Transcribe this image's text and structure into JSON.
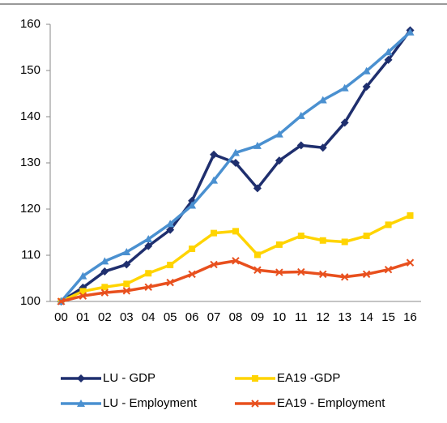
{
  "chart_data": {
    "type": "line",
    "categories": [
      "00",
      "01",
      "02",
      "03",
      "04",
      "05",
      "06",
      "07",
      "08",
      "09",
      "10",
      "11",
      "12",
      "13",
      "14",
      "15",
      "16"
    ],
    "series": [
      {
        "name": "LU - GDP",
        "color": "#1f2f6e",
        "marker": "diamond",
        "values": [
          100,
          103,
          106.5,
          108,
          112,
          115.5,
          121.8,
          131.8,
          130,
          124.5,
          130.5,
          133.8,
          133.3,
          138.7,
          146.5,
          152.3,
          158.7
        ]
      },
      {
        "name": "EA19 -GDP",
        "color": "#ffd400",
        "marker": "square",
        "values": [
          100,
          102.2,
          103.1,
          103.8,
          106.1,
          107.9,
          111.4,
          114.8,
          115.2,
          110.1,
          112.3,
          114.2,
          113.2,
          112.9,
          114.2,
          116.6,
          118.6
        ]
      },
      {
        "name": "LU - Employment",
        "color": "#4a90d0",
        "marker": "triangle",
        "values": [
          100,
          105.5,
          108.7,
          110.7,
          113.5,
          116.8,
          120.8,
          126.2,
          132.2,
          133.7,
          136.2,
          140.2,
          143.6,
          146.2,
          149.9,
          154,
          158.3
        ]
      },
      {
        "name": "EA19 - Employment",
        "color": "#e8501e",
        "marker": "x",
        "values": [
          100,
          101.2,
          101.9,
          102.3,
          103.1,
          104.1,
          105.9,
          108,
          108.8,
          106.8,
          106.3,
          106.4,
          105.9,
          105.3,
          105.9,
          106.9,
          108.4
        ]
      }
    ],
    "ylim": [
      100,
      160
    ],
    "yticks": [
      100,
      110,
      120,
      130,
      140,
      150,
      160
    ],
    "grid": false
  }
}
